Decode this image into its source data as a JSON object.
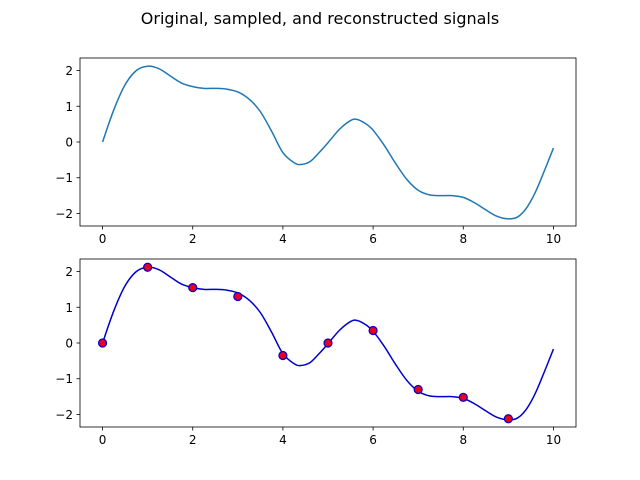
{
  "title": "Original, sampled, and reconstructed signals",
  "chart_data": [
    {
      "type": "line",
      "title": "",
      "xlabel": "",
      "ylabel": "",
      "xlim": [
        -0.5,
        10.5
      ],
      "ylim": [
        -2.35,
        2.35
      ],
      "xticks": [
        0,
        2,
        4,
        6,
        8,
        10
      ],
      "xtick_labels": [
        "0",
        "2",
        "4",
        "6",
        "8",
        "10"
      ],
      "yticks": [
        -2,
        -1,
        0,
        1,
        2
      ],
      "ytick_labels": [
        "−2",
        "−1",
        "0",
        "1",
        "2"
      ],
      "grid": false,
      "series": [
        {
          "kind": "line",
          "color": "#1f77b4",
          "x": [
            0,
            0.25,
            0.5,
            0.75,
            1.0,
            1.25,
            1.5,
            1.75,
            2.0,
            2.25,
            2.5,
            2.75,
            3.0,
            3.25,
            3.5,
            3.75,
            4.0,
            4.25,
            4.4,
            4.6,
            4.8,
            5.0,
            5.25,
            5.5,
            5.65,
            5.85,
            6.0,
            6.25,
            6.5,
            6.75,
            7.0,
            7.25,
            7.5,
            7.75,
            8.0,
            8.25,
            8.5,
            8.75,
            9.0,
            9.2,
            9.4,
            9.6,
            9.8,
            10.0
          ],
          "y": [
            0,
            0.9,
            1.6,
            2.0,
            2.12,
            2.05,
            1.85,
            1.65,
            1.55,
            1.5,
            1.5,
            1.48,
            1.4,
            1.2,
            0.85,
            0.3,
            -0.3,
            -0.58,
            -0.63,
            -0.55,
            -0.3,
            -0.02,
            0.35,
            0.6,
            0.63,
            0.5,
            0.33,
            -0.1,
            -0.6,
            -1.05,
            -1.35,
            -1.48,
            -1.5,
            -1.5,
            -1.55,
            -1.7,
            -1.9,
            -2.08,
            -2.15,
            -2.1,
            -1.85,
            -1.4,
            -0.8,
            -0.17
          ]
        }
      ]
    },
    {
      "type": "line",
      "title": "",
      "xlabel": "",
      "ylabel": "",
      "xlim": [
        -0.5,
        10.5
      ],
      "ylim": [
        -2.35,
        2.35
      ],
      "xticks": [
        0,
        2,
        4,
        6,
        8,
        10
      ],
      "xtick_labels": [
        "0",
        "2",
        "4",
        "6",
        "8",
        "10"
      ],
      "yticks": [
        -2,
        -1,
        0,
        1,
        2
      ],
      "ytick_labels": [
        "−2",
        "−1",
        "0",
        "1",
        "2"
      ],
      "grid": false,
      "series": [
        {
          "kind": "line",
          "color": "#0000cc",
          "x": [
            0,
            0.25,
            0.5,
            0.75,
            1.0,
            1.25,
            1.5,
            1.75,
            2.0,
            2.25,
            2.5,
            2.75,
            3.0,
            3.25,
            3.5,
            3.75,
            4.0,
            4.25,
            4.4,
            4.6,
            4.8,
            5.0,
            5.25,
            5.5,
            5.65,
            5.85,
            6.0,
            6.25,
            6.5,
            6.75,
            7.0,
            7.25,
            7.5,
            7.75,
            8.0,
            8.25,
            8.5,
            8.75,
            9.0,
            9.2,
            9.4,
            9.6,
            9.8,
            10.0
          ],
          "y": [
            0,
            0.9,
            1.6,
            2.0,
            2.12,
            2.05,
            1.85,
            1.65,
            1.55,
            1.5,
            1.5,
            1.48,
            1.4,
            1.2,
            0.85,
            0.3,
            -0.3,
            -0.58,
            -0.63,
            -0.55,
            -0.3,
            -0.02,
            0.35,
            0.6,
            0.63,
            0.5,
            0.33,
            -0.1,
            -0.6,
            -1.05,
            -1.35,
            -1.48,
            -1.5,
            -1.5,
            -1.55,
            -1.7,
            -1.9,
            -2.08,
            -2.15,
            -2.1,
            -1.85,
            -1.4,
            -0.8,
            -0.17
          ]
        },
        {
          "kind": "scatter",
          "color": "#e8001c",
          "edgecolor": "#0000cc",
          "x": [
            0,
            1,
            2,
            3,
            4,
            5,
            6,
            7,
            8,
            9
          ],
          "y": [
            0,
            2.12,
            1.55,
            1.3,
            -0.35,
            0,
            0.35,
            -1.3,
            -1.52,
            -2.12
          ]
        }
      ]
    }
  ]
}
